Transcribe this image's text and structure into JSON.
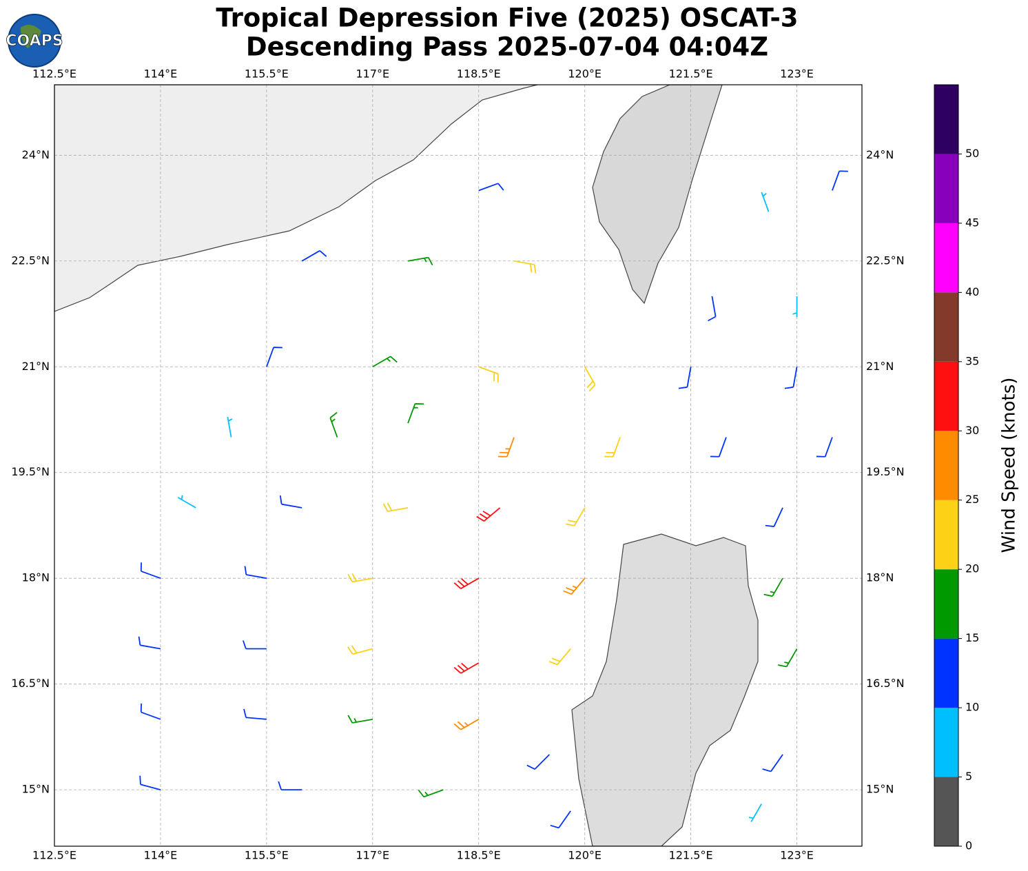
{
  "logo": "COAPS",
  "title": [
    "Tropical Depression Five (2025) OSCAT-3",
    "Descending Pass 2025-07-04 04:04Z"
  ],
  "map": {
    "xlim": [
      112.5,
      123.92
    ],
    "ylim": [
      14.2,
      25.0
    ],
    "grid": true,
    "xticks": [
      {
        "value": 112.5,
        "label": "112.5°E"
      },
      {
        "value": 114,
        "label": "114°E"
      },
      {
        "value": 115.5,
        "label": "115.5°E"
      },
      {
        "value": 117,
        "label": "117°E"
      },
      {
        "value": 118.5,
        "label": "118.5°E"
      },
      {
        "value": 120,
        "label": "120°E"
      },
      {
        "value": 121.5,
        "label": "121.5°E"
      },
      {
        "value": 123,
        "label": "123°E"
      }
    ],
    "yticks": [
      {
        "value": 15,
        "label": "15°N"
      },
      {
        "value": 16.5,
        "label": "16.5°N"
      },
      {
        "value": 18,
        "label": "18°N"
      },
      {
        "value": 19.5,
        "label": "19.5°N"
      },
      {
        "value": 21,
        "label": "21°N"
      },
      {
        "value": 22.5,
        "label": "22.5°N"
      },
      {
        "value": 24,
        "label": "24°N"
      }
    ]
  },
  "barbs": {
    "lon": [
      116,
      117.5,
      119,
      118.5,
      121.8,
      123,
      123.5,
      115.5,
      117,
      118.5,
      120,
      121.5,
      123,
      115,
      116.5,
      117.5,
      119,
      120.5,
      122,
      123.5,
      114.5,
      116,
      117.5,
      118.8,
      120,
      122.8,
      114,
      115.5,
      117,
      118.5,
      120,
      122.8,
      114,
      115.5,
      117,
      118.5,
      119.8,
      123,
      114,
      115.5,
      117,
      118.5,
      119.5,
      122.8,
      114,
      116,
      118,
      119.8,
      122.5,
      122.6
    ],
    "lat": [
      22.5,
      22.5,
      22.5,
      23.5,
      22,
      22,
      23.5,
      21,
      21,
      21,
      21,
      21,
      21,
      20,
      20,
      20.2,
      20,
      20,
      20,
      20,
      19,
      19,
      19,
      19,
      19,
      19,
      18,
      18,
      18,
      18,
      18,
      18,
      17,
      17,
      17,
      16.8,
      17,
      17,
      16,
      16,
      16,
      16,
      15.5,
      15.5,
      15,
      15,
      15,
      14.7,
      14.8,
      23.2
    ],
    "speed": [
      12,
      17,
      22,
      10,
      10,
      8,
      10,
      12,
      17,
      20,
      22,
      10,
      10,
      8,
      15,
      18,
      27,
      20,
      12,
      12,
      8,
      14,
      24,
      32,
      24,
      12,
      12,
      10,
      22,
      31,
      26,
      16,
      12,
      14,
      22,
      30,
      20,
      17,
      12,
      13,
      17,
      26,
      14,
      14,
      12,
      14,
      15,
      12,
      8,
      6
    ],
    "direction": [
      60,
      80,
      100,
      70,
      170,
      180,
      20,
      20,
      60,
      110,
      150,
      190,
      190,
      350,
      340,
      20,
      200,
      200,
      200,
      200,
      300,
      280,
      260,
      230,
      210,
      205,
      290,
      280,
      260,
      240,
      220,
      210,
      280,
      270,
      255,
      240,
      220,
      210,
      290,
      275,
      260,
      240,
      225,
      215,
      285,
      270,
      250,
      215,
      210,
      340
    ]
  },
  "colorbar": {
    "label": "Wind Speed (knots)",
    "bounds": [
      0,
      5,
      10,
      15,
      20,
      25,
      30,
      35,
      40,
      45,
      50,
      55
    ],
    "colors": [
      "#555555",
      "#00bfff",
      "#0033ff",
      "#009900",
      "#fdd116",
      "#ff8c00",
      "#ff1010",
      "#833a2a",
      "#ff00ff",
      "#8800bb",
      "#2e0060"
    ],
    "ticks": [
      0,
      5,
      10,
      15,
      20,
      25,
      30,
      35,
      40,
      45,
      50
    ]
  }
}
